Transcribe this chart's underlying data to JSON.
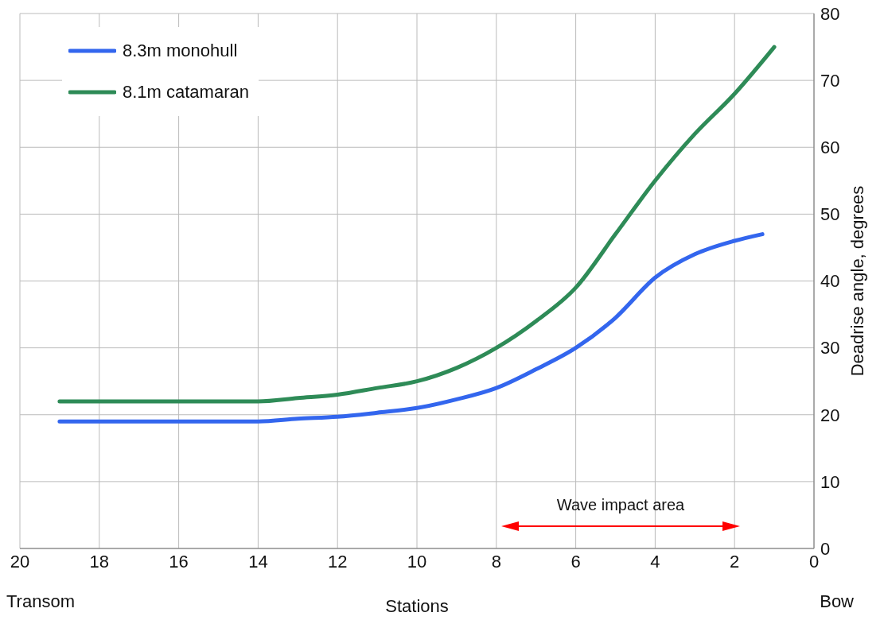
{
  "chart_data": {
    "type": "line",
    "xlabel": "Stations",
    "ylabel": "Deadrise angle, degrees",
    "annotations": [
      "Transom",
      "Bow",
      "Wave impact area"
    ],
    "xlim": [
      20,
      0
    ],
    "xticks": [
      20,
      18,
      16,
      14,
      12,
      10,
      8,
      6,
      4,
      2,
      0
    ],
    "ylim": [
      0,
      80
    ],
    "yticks": [
      0,
      10,
      20,
      30,
      40,
      50,
      60,
      70,
      80
    ],
    "grid": true,
    "legend": "top left",
    "line_style": "solid",
    "marker": "none",
    "series": [
      {
        "name": "8.3m monohull",
        "color": "#3366ee",
        "x": [
          19,
          16,
          14.5,
          14,
          13,
          12,
          11,
          10,
          9,
          8,
          7,
          6,
          5,
          4,
          3,
          2,
          1.3
        ],
        "values": [
          19,
          19,
          19,
          19,
          19.4,
          19.7,
          20.3,
          21,
          22.3,
          24,
          26.8,
          30,
          34.5,
          40.5,
          44,
          46,
          47
        ]
      },
      {
        "name": "8.1m catamaran",
        "color": "#2e8b57",
        "x": [
          19,
          16,
          14.5,
          14,
          13,
          12,
          11,
          10,
          9,
          8,
          7,
          6,
          5,
          4,
          3,
          2,
          1
        ],
        "values": [
          22,
          22,
          22,
          22,
          22.5,
          23,
          24,
          25,
          27,
          30,
          34,
          39,
          47,
          55,
          62,
          68,
          75
        ]
      }
    ]
  }
}
